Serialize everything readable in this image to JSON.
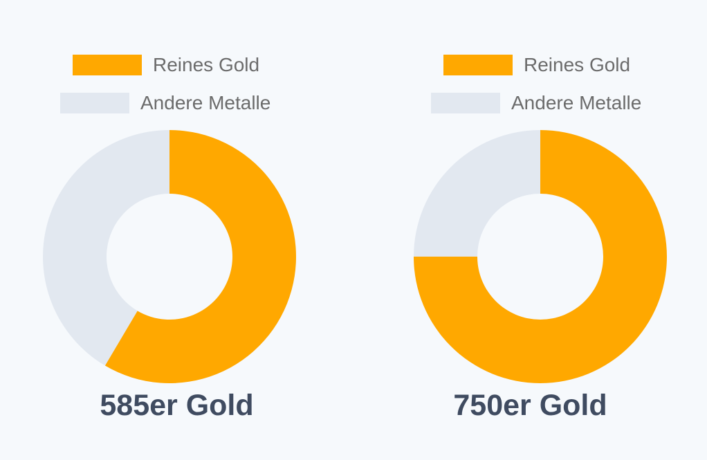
{
  "colors": {
    "gold": "#ffa800",
    "other": "#e2e8f0",
    "label": "#3f4b60",
    "legend_text": "#6b6b6b"
  },
  "chart_data": [
    {
      "type": "pie",
      "variant": "donut",
      "title": "585er Gold",
      "legend_placement": "top",
      "slices": [
        {
          "name": "Reines Gold",
          "value": 58.5,
          "color": "#ffa800"
        },
        {
          "name": "Andere Metalle",
          "value": 41.5,
          "color": "#e2e8f0"
        }
      ]
    },
    {
      "type": "pie",
      "variant": "donut",
      "title": "750er Gold",
      "legend_placement": "top",
      "slices": [
        {
          "name": "Reines Gold",
          "value": 75,
          "color": "#ffa800"
        },
        {
          "name": "Andere Metalle",
          "value": 25,
          "color": "#e2e8f0"
        }
      ]
    }
  ]
}
